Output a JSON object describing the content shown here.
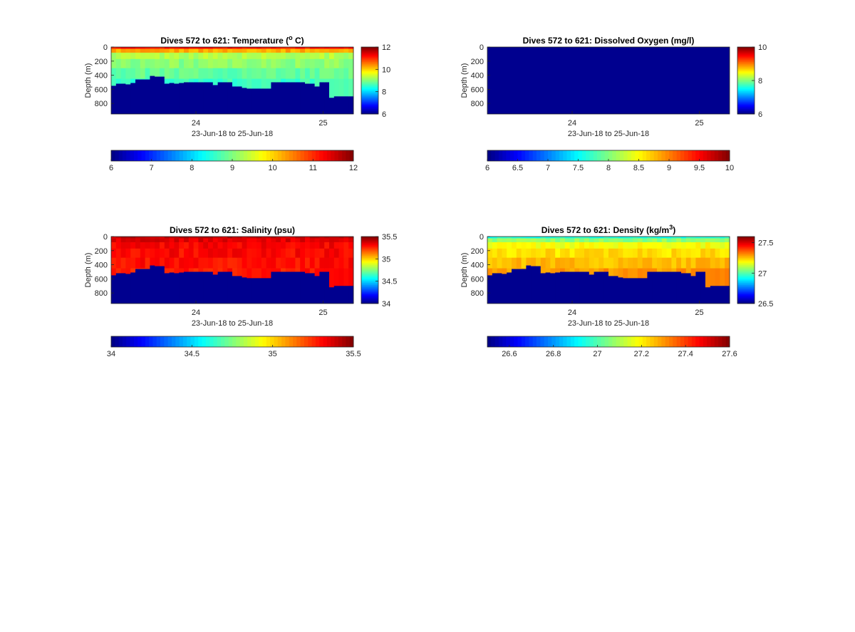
{
  "figure": {
    "background": "#ffffff"
  },
  "chart_data": [
    {
      "type": "heatmap",
      "variable": "temperature",
      "title": "Dives 572 to 621: Temperature (",
      "title_sup": "o",
      "title_end": " C)",
      "xlabel": "23-Jun-18 to 25-Jun-18",
      "ylabel": "Depth (m)",
      "x_ticks": [
        "24",
        "25"
      ],
      "y_ticks": [
        "0",
        "200",
        "400",
        "600",
        "800"
      ],
      "ylim": [
        0,
        950
      ],
      "clim": [
        6,
        12
      ],
      "side_colorbar_ticks": [
        "12",
        "10",
        "8",
        "6"
      ],
      "bottom_colorbar_ticks": [
        "6",
        "7",
        "8",
        "9",
        "10",
        "11",
        "12"
      ],
      "profile": {
        "surface": 11.2,
        "mixed": 9.3,
        "deep": 8.6
      },
      "colormap": "jet"
    },
    {
      "type": "heatmap",
      "variable": "dissolved_oxygen",
      "title": "Dives 572 to 621: Dissolved Oxygen (mg/l)",
      "xlabel": "23-Jun-18 to 25-Jun-18",
      "ylabel": "Depth (m)",
      "x_ticks": [
        "24",
        "25"
      ],
      "y_ticks": [
        "0",
        "200",
        "400",
        "600",
        "800"
      ],
      "ylim": [
        0,
        950
      ],
      "clim": [
        6,
        10
      ],
      "side_colorbar_ticks": [
        "10",
        "8",
        "6"
      ],
      "bottom_colorbar_ticks": [
        "6",
        "6.5",
        "7",
        "7.5",
        "8",
        "8.5",
        "9",
        "9.5",
        "10"
      ],
      "note": "field appears uniformly at lowest colour (no data)",
      "colormap": "jet"
    },
    {
      "type": "heatmap",
      "variable": "salinity",
      "title": "Dives 572 to 621: Salinity (psu)",
      "xlabel": "23-Jun-18 to 25-Jun-18",
      "ylabel": "Depth (m)",
      "x_ticks": [
        "24",
        "25"
      ],
      "y_ticks": [
        "0",
        "200",
        "400",
        "600",
        "800"
      ],
      "ylim": [
        0,
        950
      ],
      "clim": [
        34,
        35.5
      ],
      "side_colorbar_ticks": [
        "35.5",
        "35",
        "34.5",
        "34"
      ],
      "bottom_colorbar_ticks": [
        "34",
        "34.5",
        "35",
        "35.5"
      ],
      "profile": {
        "surface": 35.4,
        "mixed": 35.32,
        "deep": 35.28
      },
      "colormap": "jet"
    },
    {
      "type": "heatmap",
      "variable": "density",
      "title": "Dives 572 to 621: Density (kg/m",
      "title_sup": "3",
      "title_end": ")",
      "xlabel": "23-Jun-18 to 25-Jun-18",
      "ylabel": "Depth (m)",
      "x_ticks": [
        "24",
        "25"
      ],
      "y_ticks": [
        "0",
        "200",
        "400",
        "600",
        "800"
      ],
      "ylim": [
        0,
        950
      ],
      "clim": [
        26.5,
        27.6
      ],
      "side_colorbar_ticks": [
        "27.5",
        "27",
        "26.5"
      ],
      "bottom_colorbar_ticks": [
        "26.6",
        "26.8",
        "27",
        "27.2",
        "27.4",
        "27.6"
      ],
      "profile": {
        "surface": 26.95,
        "mixed": 27.18,
        "deep": 27.3
      },
      "colormap": "jet"
    }
  ],
  "seafloor_depth_m": [
    550,
    520,
    520,
    530,
    510,
    460,
    460,
    460,
    410,
    420,
    420,
    520,
    510,
    520,
    510,
    500,
    500,
    500,
    500,
    500,
    500,
    540,
    500,
    500,
    500,
    560,
    560,
    580,
    590,
    590,
    590,
    590,
    590,
    500,
    500,
    500,
    500,
    500,
    500,
    500,
    520,
    520,
    560,
    500,
    500,
    720,
    700,
    700,
    700,
    700
  ]
}
